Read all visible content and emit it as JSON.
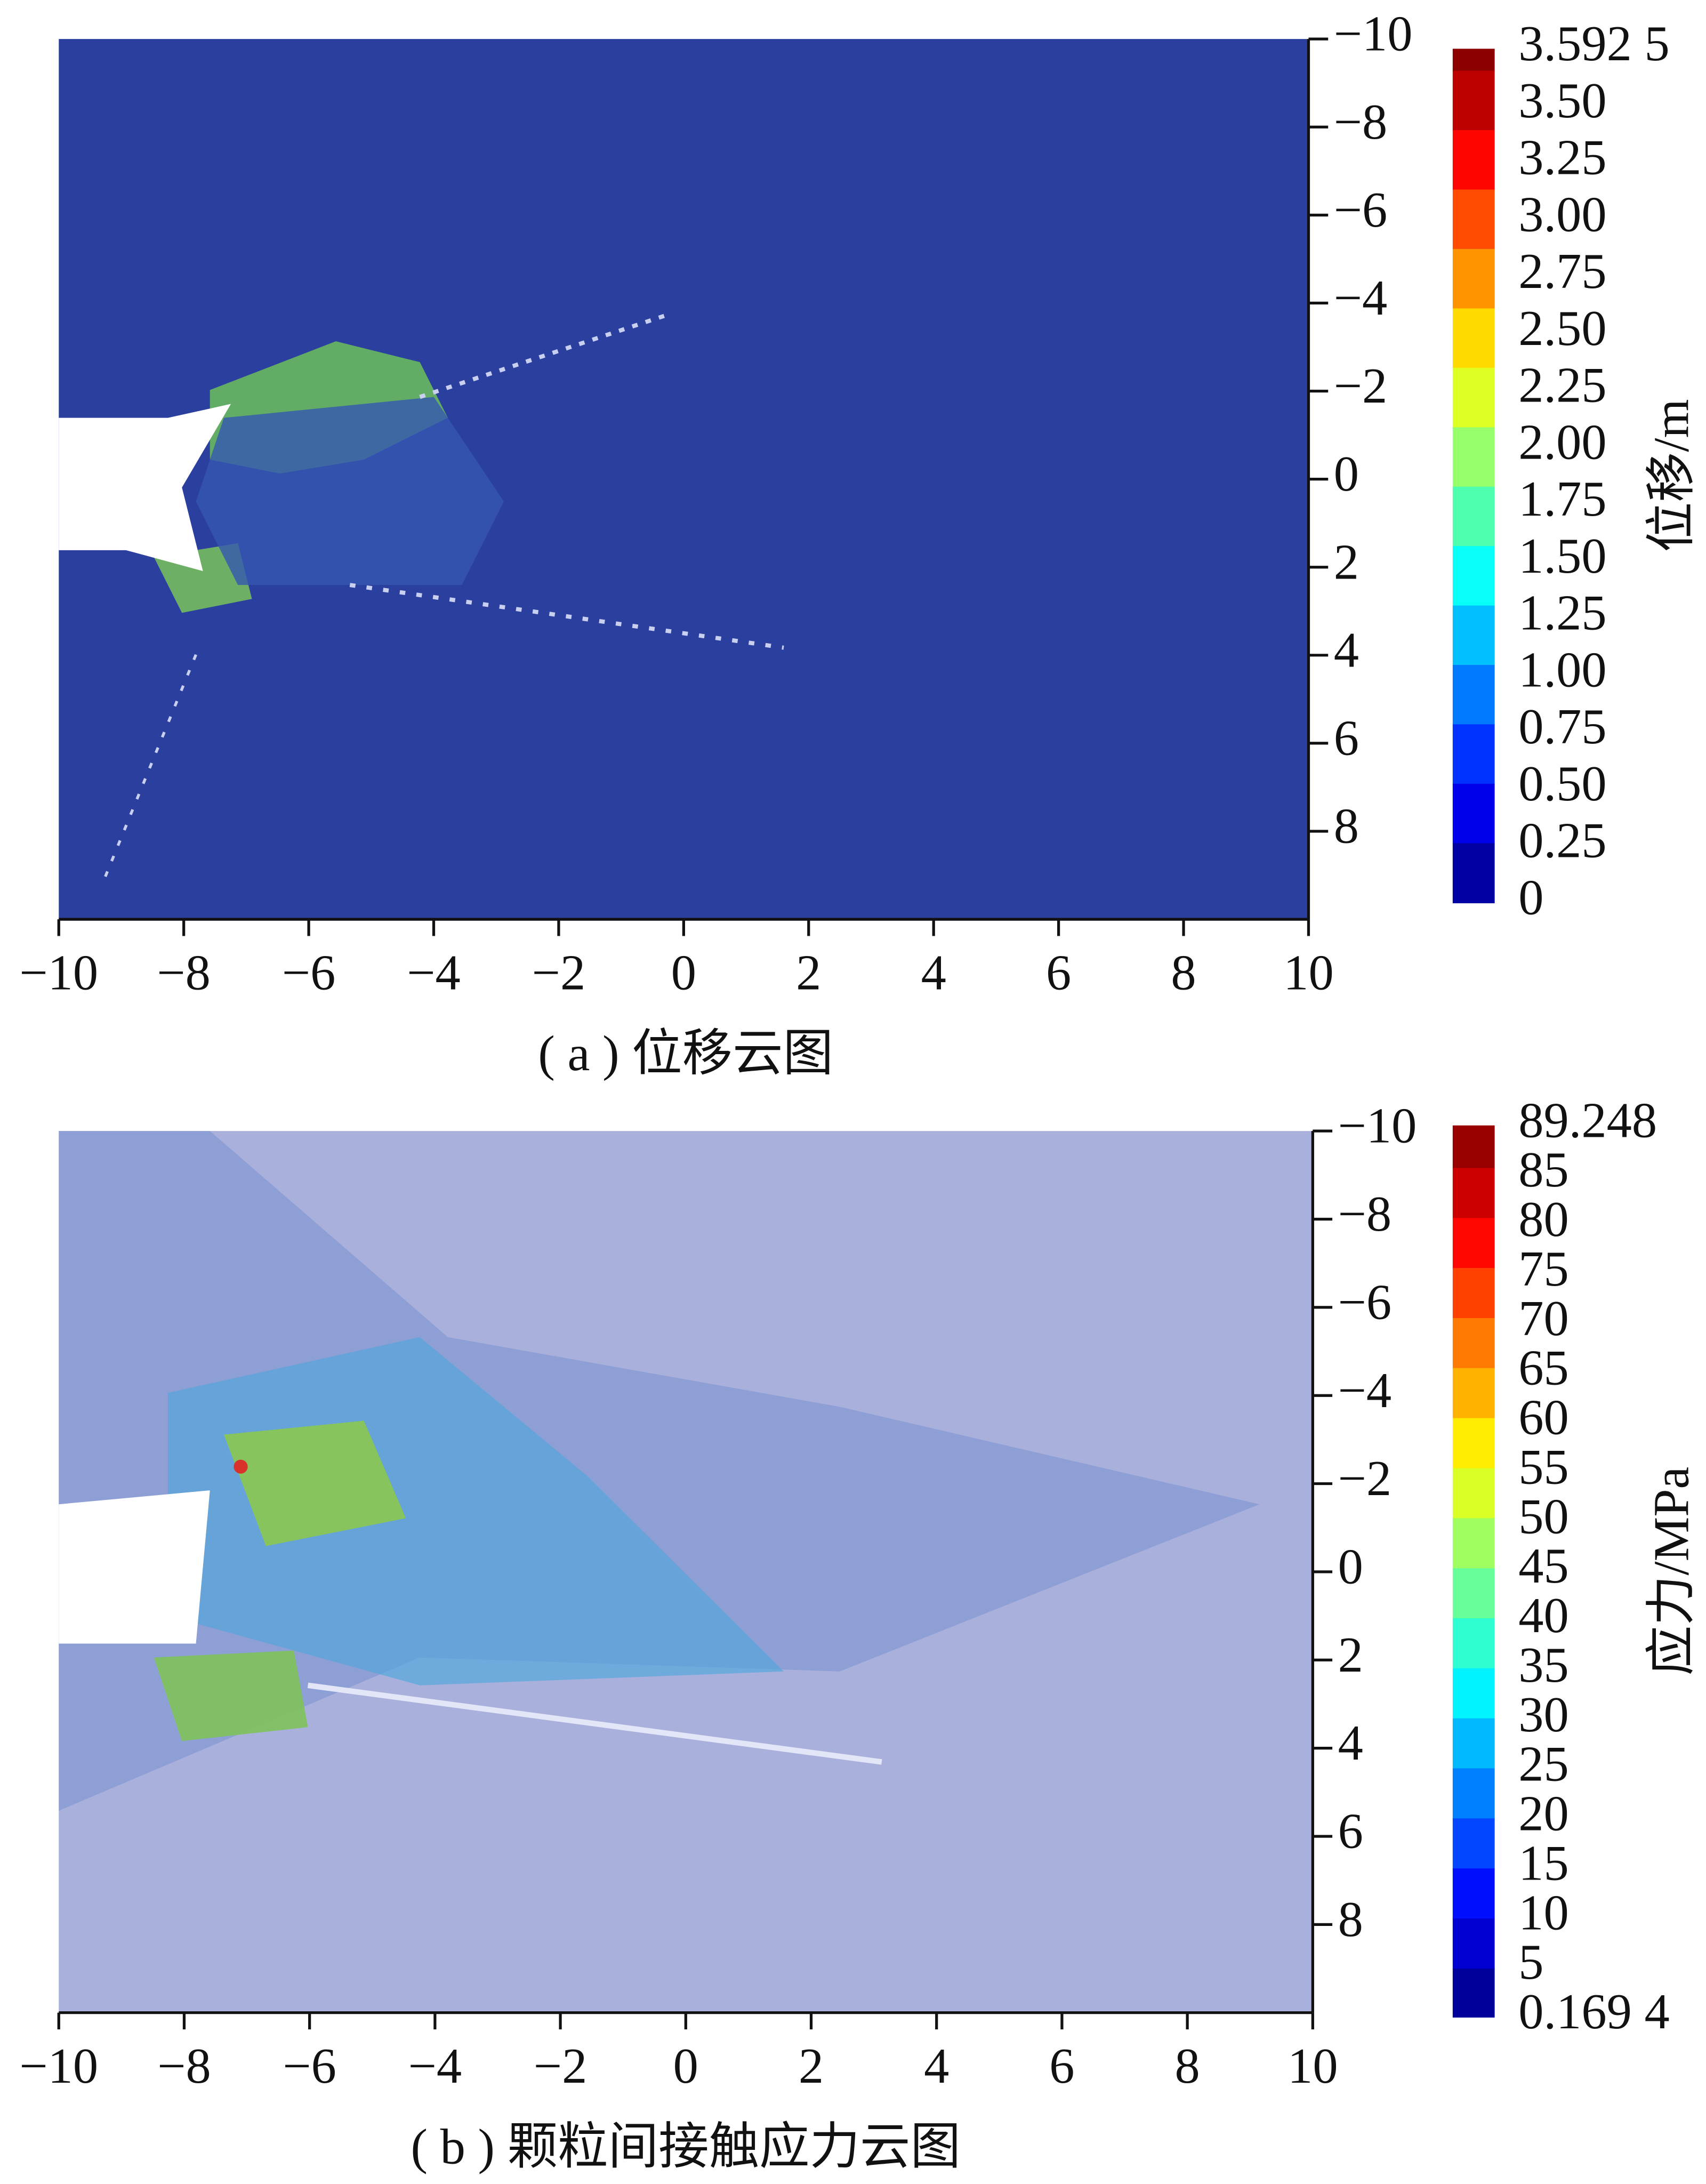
{
  "chart_data": [
    {
      "type": "contour",
      "caption": "( a ) 位移云图",
      "xlim": [
        -10,
        10
      ],
      "xticks": [
        {
          "value": -10,
          "label": "−10"
        },
        {
          "value": -8,
          "label": "−8"
        },
        {
          "value": -6,
          "label": "−6"
        },
        {
          "value": -4,
          "label": "−4"
        },
        {
          "value": -2,
          "label": "−2"
        },
        0,
        2,
        4,
        6,
        8,
        10
      ],
      "ylim": [
        -10,
        10
      ],
      "yticks": [
        {
          "value": -10,
          "label": "−10"
        },
        {
          "value": -8,
          "label": "−8"
        },
        {
          "value": -6,
          "label": "−6"
        },
        {
          "value": -4,
          "label": "−4"
        },
        {
          "value": -2,
          "label": "−2"
        },
        0,
        2,
        4,
        6,
        8
      ],
      "colorbar": {
        "label": "位移/m",
        "colormap": "jet",
        "ticks": [
          {
            "value": 3.5925,
            "label": "3.592 5"
          },
          {
            "value": 3.5,
            "label": "3.50"
          },
          3.25,
          {
            "value": 3.0,
            "label": "3.00"
          },
          2.75,
          {
            "value": 2.5,
            "label": "2.50"
          },
          2.25,
          {
            "value": 2.0,
            "label": "2.00"
          },
          1.75,
          {
            "value": 1.5,
            "label": "1.50"
          },
          1.25,
          {
            "value": 1.0,
            "label": "1.00"
          },
          0.75,
          {
            "value": 0.5,
            "label": "0.50"
          },
          0.25,
          0
        ]
      }
    },
    {
      "type": "contour",
      "caption": "( b ) 颗粒间接触应力云图",
      "xlim": [
        -10,
        10
      ],
      "xticks": [
        {
          "value": -10,
          "label": "−10"
        },
        {
          "value": -8,
          "label": "−8"
        },
        {
          "value": -6,
          "label": "−6"
        },
        {
          "value": -4,
          "label": "−4"
        },
        {
          "value": -2,
          "label": "−2"
        },
        0,
        2,
        4,
        6,
        8,
        10
      ],
      "ylim": [
        -10,
        10
      ],
      "yticks": [
        {
          "value": -10,
          "label": "−10"
        },
        {
          "value": -8,
          "label": "−8"
        },
        {
          "value": -6,
          "label": "−6"
        },
        {
          "value": -4,
          "label": "−4"
        },
        {
          "value": -2,
          "label": "−2"
        },
        0,
        2,
        4,
        6,
        8
      ],
      "colorbar": {
        "label": "应力/MPa",
        "colormap": "jet",
        "ticks": [
          89.248,
          85,
          80,
          75,
          70,
          65,
          60,
          55,
          50,
          45,
          40,
          35,
          30,
          25,
          20,
          15,
          10,
          5,
          {
            "value": 0.1694,
            "label": "0.169 4"
          }
        ]
      }
    }
  ]
}
